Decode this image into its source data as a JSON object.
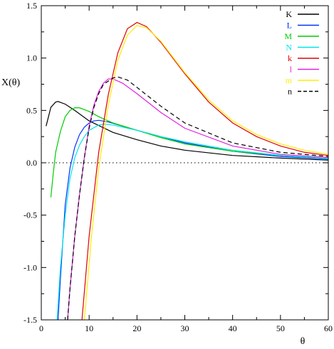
{
  "chart_data": {
    "type": "line",
    "title": "",
    "xlabel": "θ",
    "ylabel": "X(θ)",
    "xlim": [
      0,
      60
    ],
    "ylim": [
      -1.5,
      1.5
    ],
    "x_ticks": [
      "0",
      "10",
      "20",
      "30",
      "40",
      "50",
      "60"
    ],
    "y_ticks": [
      "-1.5",
      "-1.0",
      "-0.5",
      "0.0",
      "0.5",
      "1.0",
      "1.5"
    ],
    "grid": false,
    "legend_position": "top-right",
    "reference_line": {
      "y": 0,
      "style": "dotted"
    },
    "series": [
      {
        "name": "K",
        "color": "#000000",
        "dash": "solid",
        "points": [
          [
            1,
            0.35
          ],
          [
            1.5,
            0.44
          ],
          [
            2,
            0.53
          ],
          [
            3,
            0.58
          ],
          [
            3.5,
            0.585
          ],
          [
            5,
            0.56
          ],
          [
            7,
            0.5
          ],
          [
            10,
            0.4
          ],
          [
            15,
            0.29
          ],
          [
            20,
            0.22
          ],
          [
            25,
            0.16
          ],
          [
            30,
            0.12
          ],
          [
            40,
            0.07
          ],
          [
            50,
            0.045
          ],
          [
            60,
            0.025
          ]
        ]
      },
      {
        "name": "L",
        "color": "#0033ff",
        "dash": "solid",
        "points": [
          [
            3.5,
            -1.5
          ],
          [
            4,
            -1.1
          ],
          [
            5,
            -0.4
          ],
          [
            6,
            -0.05
          ],
          [
            7,
            0.15
          ],
          [
            8,
            0.27
          ],
          [
            9,
            0.34
          ],
          [
            10,
            0.38
          ],
          [
            11,
            0.4
          ],
          [
            12,
            0.405
          ],
          [
            14,
            0.39
          ],
          [
            17,
            0.35
          ],
          [
            20,
            0.31
          ],
          [
            25,
            0.25
          ],
          [
            30,
            0.19
          ],
          [
            40,
            0.11
          ],
          [
            50,
            0.06
          ],
          [
            60,
            0.035
          ]
        ]
      },
      {
        "name": "M",
        "color": "#00cc00",
        "dash": "solid",
        "points": [
          [
            2,
            -0.33
          ],
          [
            2.5,
            -0.1
          ],
          [
            3,
            0.1
          ],
          [
            4,
            0.3
          ],
          [
            5,
            0.44
          ],
          [
            6,
            0.5
          ],
          [
            7,
            0.525
          ],
          [
            8,
            0.525
          ],
          [
            10,
            0.49
          ],
          [
            12,
            0.44
          ],
          [
            15,
            0.38
          ],
          [
            20,
            0.31
          ],
          [
            25,
            0.24
          ],
          [
            30,
            0.18
          ],
          [
            40,
            0.11
          ],
          [
            50,
            0.07
          ],
          [
            60,
            0.04
          ]
        ]
      },
      {
        "name": "N",
        "color": "#00e5e5",
        "dash": "solid",
        "points": [
          [
            3.3,
            -1.5
          ],
          [
            4,
            -1.0
          ],
          [
            5,
            -0.5
          ],
          [
            6,
            -0.15
          ],
          [
            7,
            0.05
          ],
          [
            8,
            0.17
          ],
          [
            9,
            0.25
          ],
          [
            10,
            0.31
          ],
          [
            12,
            0.36
          ],
          [
            13,
            0.37
          ],
          [
            15,
            0.36
          ],
          [
            20,
            0.31
          ],
          [
            25,
            0.25
          ],
          [
            30,
            0.2
          ],
          [
            40,
            0.12
          ],
          [
            50,
            0.07
          ],
          [
            60,
            0.04
          ]
        ]
      },
      {
        "name": "k",
        "color": "#e00000",
        "dash": "solid",
        "points": [
          [
            8.5,
            -1.5
          ],
          [
            10,
            -0.7
          ],
          [
            12,
            0.1
          ],
          [
            14,
            0.65
          ],
          [
            16,
            1.05
          ],
          [
            18,
            1.28
          ],
          [
            20,
            1.34
          ],
          [
            22,
            1.3
          ],
          [
            25,
            1.15
          ],
          [
            30,
            0.85
          ],
          [
            35,
            0.58
          ],
          [
            40,
            0.38
          ],
          [
            45,
            0.25
          ],
          [
            50,
            0.16
          ],
          [
            55,
            0.1
          ],
          [
            60,
            0.07
          ]
        ]
      },
      {
        "name": "l",
        "color": "#e020e0",
        "dash": "solid",
        "points": [
          [
            5.5,
            -1.5
          ],
          [
            6,
            -1.2
          ],
          [
            7,
            -0.7
          ],
          [
            8,
            -0.3
          ],
          [
            9,
            0.05
          ],
          [
            10,
            0.35
          ],
          [
            11,
            0.55
          ],
          [
            12,
            0.68
          ],
          [
            13,
            0.76
          ],
          [
            14,
            0.8
          ],
          [
            15,
            0.8
          ],
          [
            17,
            0.76
          ],
          [
            20,
            0.66
          ],
          [
            25,
            0.48
          ],
          [
            30,
            0.33
          ],
          [
            40,
            0.16
          ],
          [
            50,
            0.08
          ],
          [
            60,
            0.05
          ]
        ]
      },
      {
        "name": "m",
        "color": "#ffee00",
        "dash": "solid",
        "points": [
          [
            9,
            -1.5
          ],
          [
            10.5,
            -0.7
          ],
          [
            12,
            -0.05
          ],
          [
            14,
            0.55
          ],
          [
            16,
            0.98
          ],
          [
            18,
            1.22
          ],
          [
            20,
            1.31
          ],
          [
            22,
            1.29
          ],
          [
            25,
            1.16
          ],
          [
            30,
            0.86
          ],
          [
            35,
            0.6
          ],
          [
            40,
            0.4
          ],
          [
            45,
            0.27
          ],
          [
            50,
            0.18
          ],
          [
            55,
            0.12
          ],
          [
            60,
            0.08
          ]
        ]
      },
      {
        "name": "n",
        "color": "#000000",
        "dash": "dashed",
        "points": [
          [
            5.5,
            -1.5
          ],
          [
            6,
            -1.2
          ],
          [
            7,
            -0.7
          ],
          [
            8,
            -0.3
          ],
          [
            9,
            0.05
          ],
          [
            10,
            0.33
          ],
          [
            11,
            0.53
          ],
          [
            12,
            0.66
          ],
          [
            13,
            0.75
          ],
          [
            15,
            0.81
          ],
          [
            16,
            0.82
          ],
          [
            18,
            0.79
          ],
          [
            20,
            0.72
          ],
          [
            25,
            0.54
          ],
          [
            30,
            0.38
          ],
          [
            40,
            0.19
          ],
          [
            50,
            0.1
          ],
          [
            60,
            0.06
          ]
        ]
      }
    ]
  }
}
